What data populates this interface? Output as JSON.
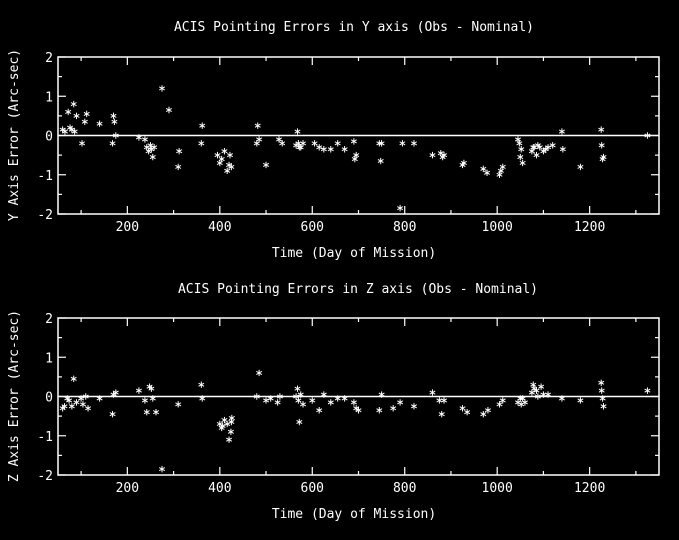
{
  "colors": {
    "background": "#000000",
    "foreground": "#ffffff"
  },
  "chart_data": [
    {
      "type": "scatter",
      "title": "ACIS Pointing Errors in Y axis (Obs - Nominal)",
      "xlabel": "Time (Day of Mission)",
      "ylabel": "Y Axis Error (Arc-sec)",
      "xlim": [
        50,
        1350
      ],
      "ylim": [
        -2,
        2
      ],
      "xticks": [
        200,
        400,
        600,
        800,
        1000,
        1200
      ],
      "yticks": [
        -2,
        -1,
        0,
        1,
        2
      ],
      "grid": false,
      "reference_line": 0,
      "marker": "asterisk",
      "series": [
        {
          "x": [
            60,
            65,
            72,
            76,
            80,
            84,
            86,
            90,
            102,
            108,
            112,
            140,
            168,
            170,
            172,
            175,
            225,
            238,
            242,
            246,
            250,
            252,
            255,
            258,
            275,
            290,
            310,
            312,
            360,
            362,
            395,
            400,
            404,
            410,
            416,
            420,
            422,
            425,
            480,
            482,
            485,
            500,
            528,
            535,
            565,
            568,
            570,
            572,
            575,
            580,
            605,
            615,
            625,
            640,
            655,
            670,
            690,
            692,
            695,
            745,
            748,
            750,
            790,
            795,
            820,
            860,
            878,
            882,
            885,
            925,
            928,
            970,
            978,
            1005,
            1008,
            1012,
            1045,
            1048,
            1050,
            1052,
            1055,
            1075,
            1078,
            1080,
            1085,
            1088,
            1092,
            1100,
            1105,
            1110,
            1120,
            1140,
            1142,
            1180,
            1225,
            1226,
            1228,
            1230,
            1325
          ],
          "y": [
            0.15,
            0.1,
            0.6,
            0.2,
            0.15,
            0.8,
            0.1,
            0.5,
            -0.2,
            0.35,
            0.55,
            0.3,
            -0.2,
            0.5,
            0.35,
            0.0,
            -0.05,
            -0.1,
            -0.3,
            -0.4,
            -0.25,
            -0.35,
            -0.55,
            -0.3,
            1.2,
            0.65,
            -0.8,
            -0.4,
            -0.2,
            0.25,
            -0.5,
            -0.7,
            -0.6,
            -0.4,
            -0.9,
            -0.75,
            -0.5,
            -0.8,
            -0.2,
            0.25,
            -0.1,
            -0.75,
            -0.1,
            -0.2,
            -0.25,
            0.1,
            -0.2,
            -0.3,
            -0.3,
            -0.2,
            -0.2,
            -0.3,
            -0.35,
            -0.35,
            -0.2,
            -0.35,
            -0.15,
            -0.6,
            -0.5,
            -0.2,
            -0.65,
            -0.2,
            -1.85,
            -0.2,
            -0.2,
            -0.5,
            -0.45,
            -0.55,
            -0.5,
            -0.75,
            -0.7,
            -0.85,
            -0.95,
            -1.0,
            -0.9,
            -0.8,
            -0.1,
            -0.2,
            -0.55,
            -0.35,
            -0.7,
            -0.4,
            -0.3,
            -0.3,
            -0.5,
            -0.25,
            -0.3,
            -0.4,
            -0.35,
            -0.3,
            -0.25,
            0.1,
            -0.35,
            -0.8,
            0.15,
            -0.25,
            -0.6,
            -0.55,
            0.0
          ]
        }
      ]
    },
    {
      "type": "scatter",
      "title": "ACIS Pointing Errors in  Z axis (Obs - Nominal)",
      "xlabel": "Time (Day of Mission)",
      "ylabel": "Z Axis Error (Arc-sec)",
      "xlim": [
        50,
        1350
      ],
      "ylim": [
        -2,
        2
      ],
      "xticks": [
        200,
        400,
        600,
        800,
        1000,
        1200
      ],
      "yticks": [
        -2,
        -1,
        0,
        1,
        2
      ],
      "grid": false,
      "reference_line": 0,
      "marker": "asterisk",
      "series": [
        {
          "x": [
            60,
            64,
            70,
            74,
            80,
            84,
            90,
            100,
            104,
            110,
            115,
            140,
            168,
            170,
            175,
            225,
            238,
            242,
            248,
            252,
            255,
            262,
            275,
            310,
            360,
            362,
            400,
            404,
            406,
            410,
            416,
            420,
            424,
            425,
            426,
            480,
            485,
            500,
            510,
            525,
            530,
            565,
            568,
            570,
            572,
            575,
            580,
            600,
            615,
            625,
            640,
            655,
            670,
            690,
            695,
            700,
            745,
            750,
            775,
            790,
            820,
            860,
            875,
            880,
            885,
            925,
            935,
            970,
            980,
            1005,
            1012,
            1045,
            1050,
            1052,
            1055,
            1060,
            1075,
            1078,
            1080,
            1085,
            1088,
            1095,
            1100,
            1110,
            1140,
            1180,
            1225,
            1226,
            1228,
            1230,
            1325
          ],
          "y": [
            -0.3,
            -0.25,
            -0.05,
            -0.1,
            -0.25,
            0.45,
            -0.15,
            -0.05,
            -0.2,
            0.0,
            -0.3,
            -0.05,
            -0.45,
            0.05,
            0.1,
            0.15,
            -0.1,
            -0.4,
            0.25,
            0.2,
            -0.05,
            -0.4,
            -1.85,
            -0.2,
            0.3,
            -0.05,
            -0.7,
            -0.8,
            -0.75,
            -0.6,
            -0.7,
            -1.1,
            -0.9,
            -0.65,
            -0.55,
            0.0,
            0.6,
            -0.1,
            -0.05,
            -0.15,
            0.0,
            0.0,
            0.2,
            -0.1,
            -0.65,
            0.05,
            -0.2,
            -0.1,
            -0.35,
            0.05,
            -0.15,
            -0.05,
            -0.05,
            -0.15,
            -0.3,
            -0.35,
            -0.35,
            0.05,
            -0.3,
            -0.15,
            -0.25,
            0.1,
            -0.1,
            -0.45,
            -0.1,
            -0.3,
            -0.4,
            -0.45,
            -0.35,
            -0.2,
            -0.1,
            -0.15,
            -0.05,
            -0.2,
            -0.05,
            -0.15,
            0.1,
            0.3,
            0.2,
            0.15,
            0.0,
            0.25,
            0.05,
            0.05,
            -0.05,
            -0.1,
            0.35,
            0.15,
            -0.05,
            -0.25,
            0.15
          ]
        }
      ]
    }
  ]
}
